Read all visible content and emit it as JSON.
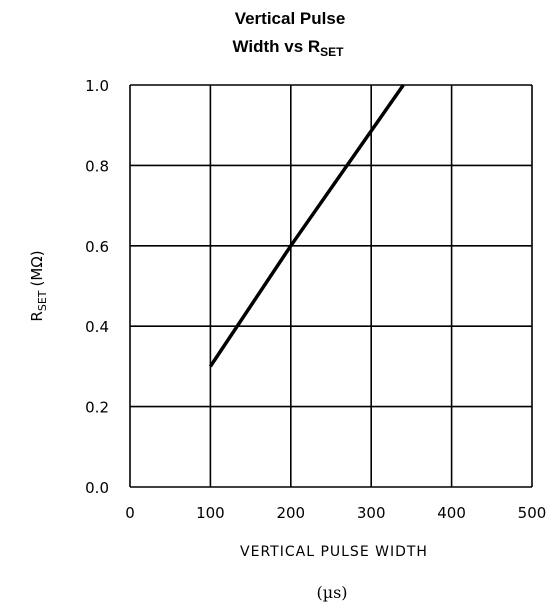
{
  "chart_data": {
    "type": "line",
    "title_line1": "Vertical Pulse",
    "title_line2_main": "Width vs R",
    "title_line2_sub": "SET",
    "xlabel": "VERTICAL PULSE WIDTH",
    "xunit": "(µs)",
    "ylabel_main": "R",
    "ylabel_sub": "SET",
    "ylabel_unit": "(MΩ)",
    "xlim": [
      0,
      500
    ],
    "ylim": [
      0.0,
      1.0
    ],
    "x_ticks": [
      0,
      100,
      200,
      300,
      400,
      500
    ],
    "x_tick_labels": [
      "0",
      "100",
      "200",
      "300",
      "400",
      "500"
    ],
    "y_ticks": [
      0.0,
      0.2,
      0.4,
      0.6,
      0.8,
      1.0
    ],
    "y_tick_labels": [
      "0.0",
      "0.2",
      "0.4",
      "0.6",
      "0.8",
      "1.0"
    ],
    "grid": true,
    "series": [
      {
        "x": [
          100,
          200,
          340
        ],
        "y": [
          0.3,
          0.6,
          1.0
        ]
      }
    ],
    "line_color": "#000000",
    "grid_color": "#000000"
  }
}
